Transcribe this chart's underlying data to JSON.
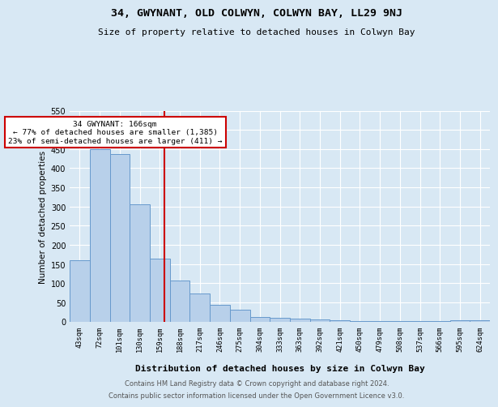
{
  "title": "34, GWYNANT, OLD COLWYN, COLWYN BAY, LL29 9NJ",
  "subtitle": "Size of property relative to detached houses in Colwyn Bay",
  "xlabel": "Distribution of detached houses by size in Colwyn Bay",
  "ylabel": "Number of detached properties",
  "footnote1": "Contains HM Land Registry data © Crown copyright and database right 2024.",
  "footnote2": "Contains public sector information licensed under the Open Government Licence v3.0.",
  "annotation_line1": "34 GWYNANT: 166sqm",
  "annotation_line2": "← 77% of detached houses are smaller (1,385)",
  "annotation_line3": "23% of semi-detached houses are larger (411) →",
  "bar_color": "#b8d0ea",
  "bar_edge_color": "#6699cc",
  "red_line_color": "#cc0000",
  "background_color": "#d8e8f4",
  "plot_bg_color": "#d8e8f4",
  "grid_color": "#ffffff",
  "categories": [
    "43sqm",
    "72sqm",
    "101sqm",
    "130sqm",
    "159sqm",
    "188sqm",
    "217sqm",
    "246sqm",
    "275sqm",
    "304sqm",
    "333sqm",
    "363sqm",
    "392sqm",
    "421sqm",
    "450sqm",
    "479sqm",
    "508sqm",
    "537sqm",
    "566sqm",
    "595sqm",
    "624sqm"
  ],
  "values": [
    160,
    450,
    437,
    305,
    165,
    107,
    73,
    43,
    30,
    11,
    10,
    8,
    5,
    3,
    2,
    1,
    1,
    1,
    1,
    4,
    3
  ],
  "ylim": [
    0,
    550
  ],
  "yticks": [
    0,
    50,
    100,
    150,
    200,
    250,
    300,
    350,
    400,
    450,
    500,
    550
  ]
}
